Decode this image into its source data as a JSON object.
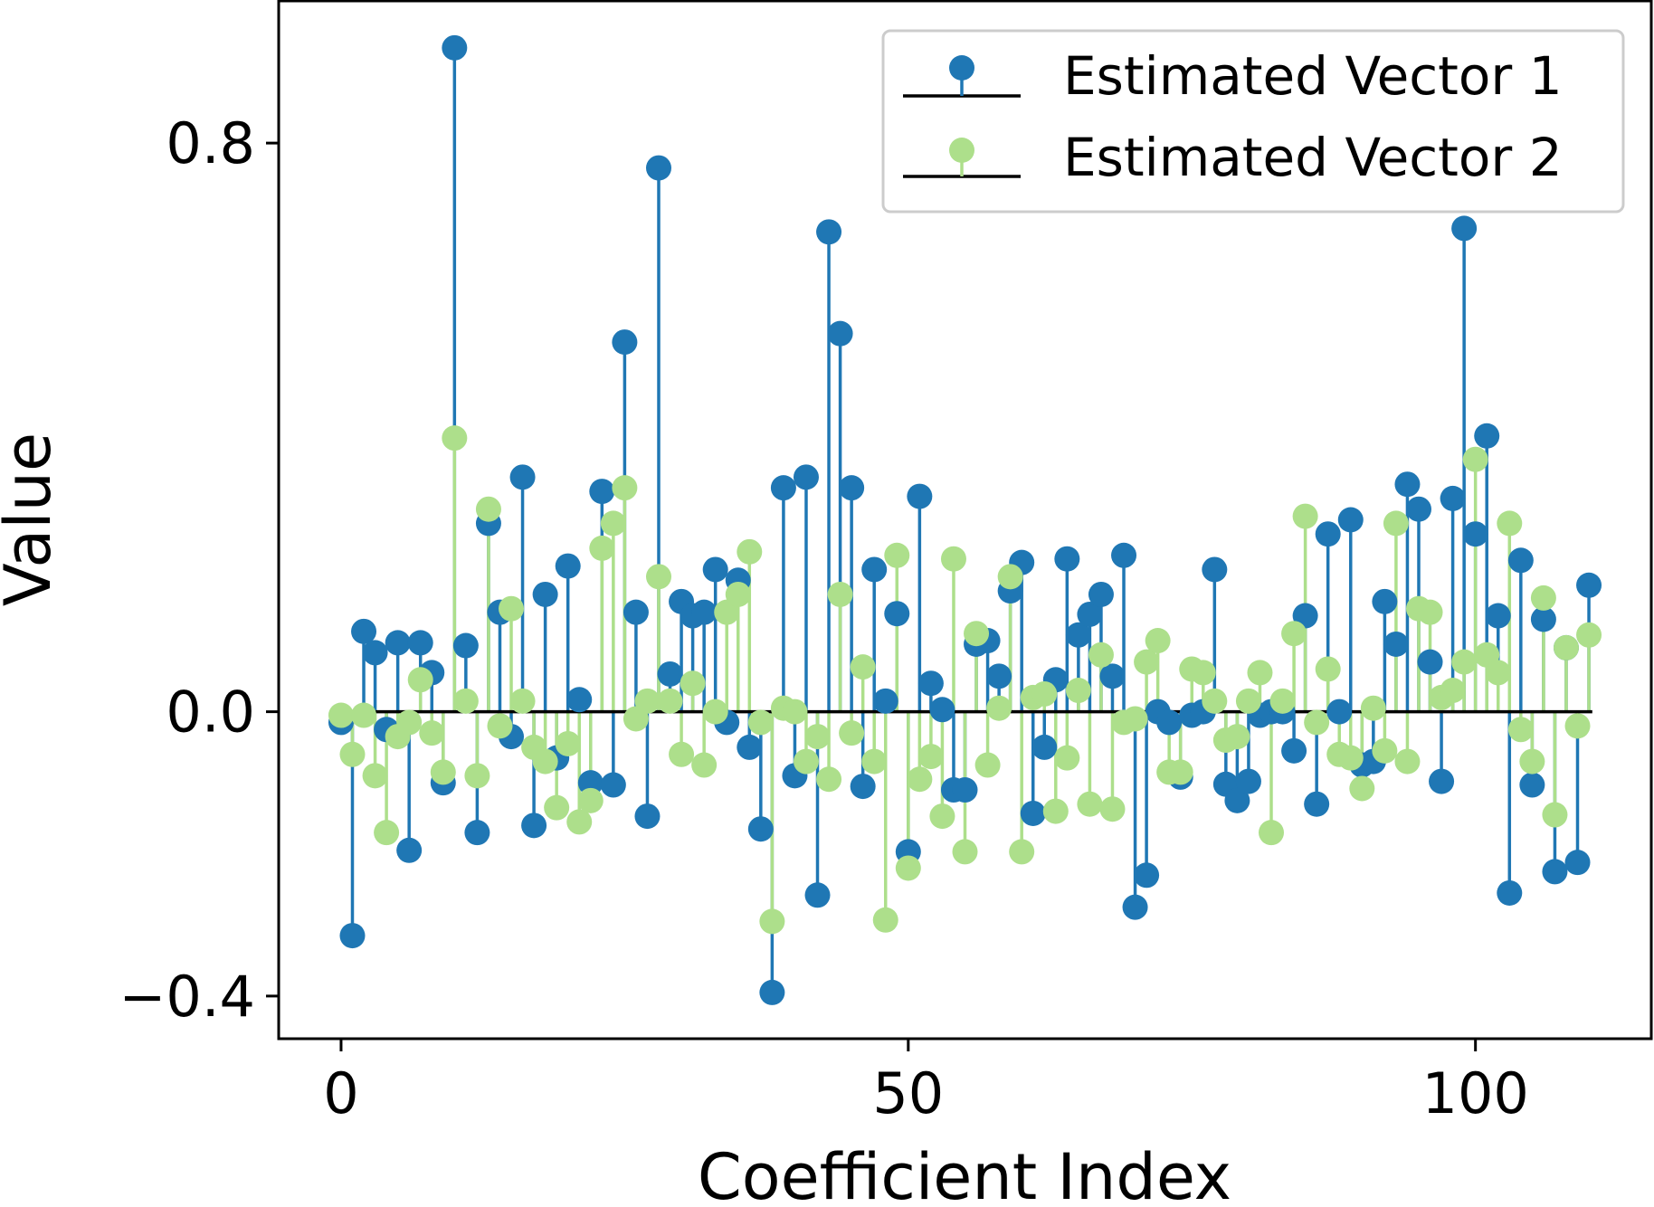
{
  "chart_data": {
    "type": "stem",
    "title": "",
    "xlabel": "Coefficient Index",
    "ylabel": "Value",
    "xlim": [
      -5.5,
      115.5
    ],
    "ylim": [
      -0.46,
      1.0
    ],
    "xticks": [
      0,
      50,
      100
    ],
    "xtick_labels": [
      "0",
      "50",
      "100"
    ],
    "yticks": [
      -0.4,
      0.0,
      0.8
    ],
    "ytick_labels": [
      "−0.4",
      "0.0",
      "0.8"
    ],
    "baseline": 0.0,
    "legend_position": "top-right",
    "series": [
      {
        "name": "Estimated Vector 1",
        "color": "#1f77b4",
        "values": [
          -0.015,
          -0.315,
          0.113,
          0.083,
          -0.025,
          0.097,
          -0.195,
          0.097,
          0.055,
          -0.1,
          0.934,
          0.093,
          -0.17,
          0.265,
          0.14,
          -0.035,
          0.33,
          -0.16,
          0.165,
          -0.065,
          0.205,
          0.017,
          -0.1,
          0.31,
          -0.103,
          0.52,
          0.14,
          -0.147,
          0.765,
          0.053,
          0.155,
          0.135,
          0.14,
          0.2,
          -0.015,
          0.185,
          -0.05,
          -0.165,
          -0.395,
          0.315,
          -0.09,
          0.33,
          -0.258,
          0.675,
          0.532,
          0.315,
          -0.105,
          0.2,
          0.015,
          0.138,
          -0.197,
          0.303,
          0.04,
          0.003,
          -0.11,
          -0.11,
          0.095,
          0.1,
          0.05,
          0.17,
          0.21,
          -0.143,
          -0.05,
          0.045,
          0.215,
          0.108,
          0.137,
          0.165,
          0.05,
          0.22,
          -0.275,
          -0.23,
          0.0,
          -0.015,
          -0.092,
          -0.005,
          0.0,
          0.2,
          -0.102,
          -0.125,
          -0.098,
          -0.005,
          0.0,
          0.0,
          -0.055,
          0.135,
          -0.13,
          0.25,
          0.0,
          0.27,
          -0.075,
          -0.07,
          0.155,
          0.095,
          0.32,
          0.285,
          0.07,
          -0.098,
          0.3,
          0.68,
          0.25,
          0.388,
          0.135,
          -0.255,
          0.213,
          -0.103,
          0.13,
          -0.225,
          0.09,
          -0.212,
          0.178
        ]
      },
      {
        "name": "Estimated Vector 2",
        "color": "#addf8b",
        "values": [
          -0.005,
          -0.06,
          -0.005,
          -0.09,
          -0.17,
          -0.035,
          -0.015,
          0.045,
          -0.03,
          -0.085,
          0.385,
          0.015,
          -0.09,
          0.285,
          -0.02,
          0.145,
          0.015,
          -0.05,
          -0.07,
          -0.135,
          -0.045,
          -0.155,
          -0.125,
          0.23,
          0.265,
          0.315,
          -0.01,
          0.015,
          0.19,
          0.015,
          -0.06,
          0.04,
          -0.075,
          0.0,
          0.14,
          0.165,
          0.225,
          -0.015,
          -0.295,
          0.005,
          0.0,
          -0.07,
          -0.035,
          -0.095,
          0.165,
          -0.03,
          0.063,
          -0.07,
          -0.293,
          0.22,
          -0.22,
          -0.095,
          -0.063,
          -0.147,
          0.215,
          -0.197,
          0.11,
          -0.075,
          0.005,
          0.19,
          -0.197,
          0.02,
          0.025,
          -0.14,
          -0.065,
          0.03,
          -0.13,
          0.08,
          -0.137,
          -0.015,
          -0.01,
          0.07,
          0.1,
          -0.085,
          -0.085,
          0.06,
          0.055,
          0.015,
          -0.04,
          -0.035,
          0.015,
          0.055,
          -0.17,
          0.015,
          0.11,
          0.275,
          -0.015,
          0.06,
          -0.06,
          -0.065,
          -0.108,
          0.005,
          -0.055,
          0.265,
          -0.07,
          0.145,
          0.14,
          0.02,
          0.03,
          0.07,
          0.355,
          0.08,
          0.055,
          0.265,
          -0.025,
          -0.07,
          0.16,
          -0.145,
          0.09,
          -0.02,
          0.108
        ]
      }
    ]
  }
}
